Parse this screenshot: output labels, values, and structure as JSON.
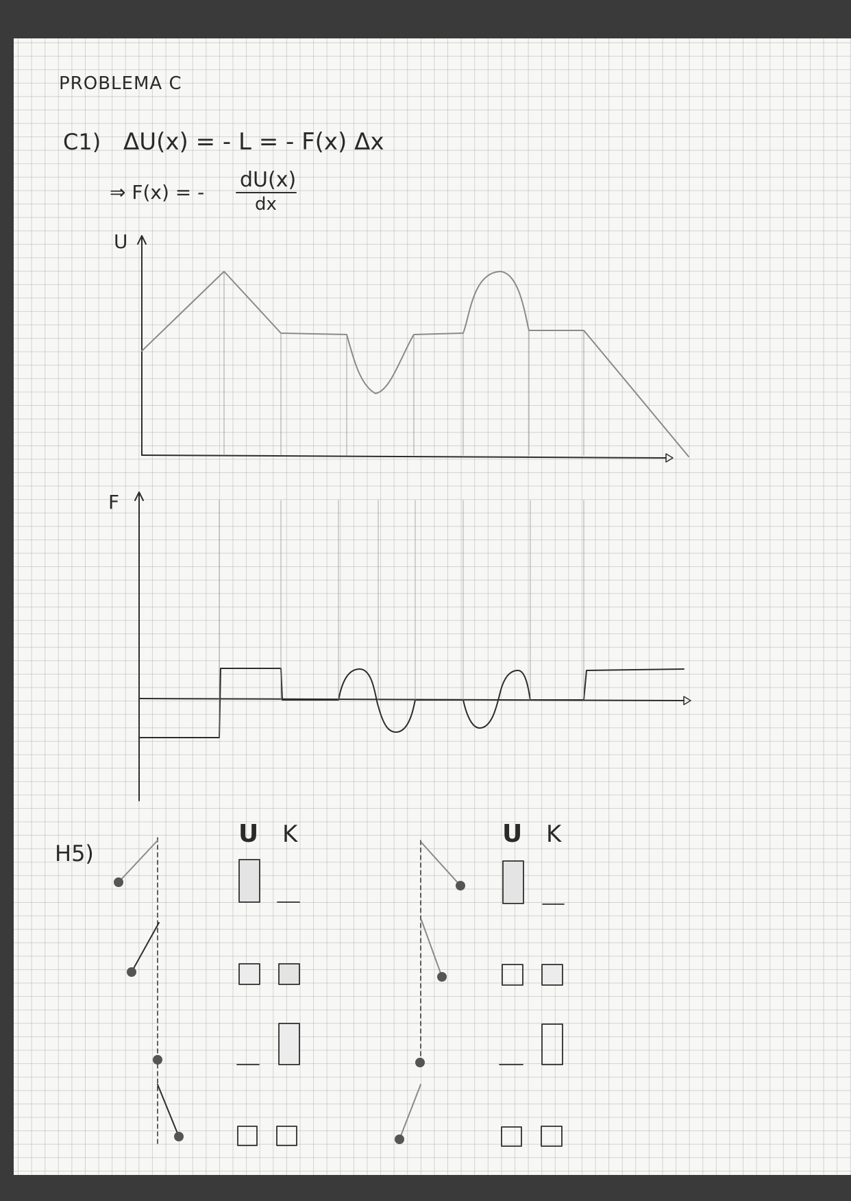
{
  "heading": "PROBLEMA C",
  "c1": {
    "label": "C1)",
    "eq1": "ΔU(x) = - L = - F(x) Δx",
    "eq2_prefix": "⇒ F(x) = -",
    "eq2_num": "dU(x)",
    "eq2_den": "dx"
  },
  "graph_u": {
    "axis_label": "U"
  },
  "graph_f": {
    "axis_label": "F"
  },
  "h5": {
    "label": "H5)",
    "col_u": "U",
    "col_k": "K"
  },
  "colors": {
    "paper": "#f7f7f5",
    "grid": "#969696",
    "ink": "#2d2d2d",
    "pencil": "#8a8a8a",
    "background": "#3a3a3a"
  }
}
